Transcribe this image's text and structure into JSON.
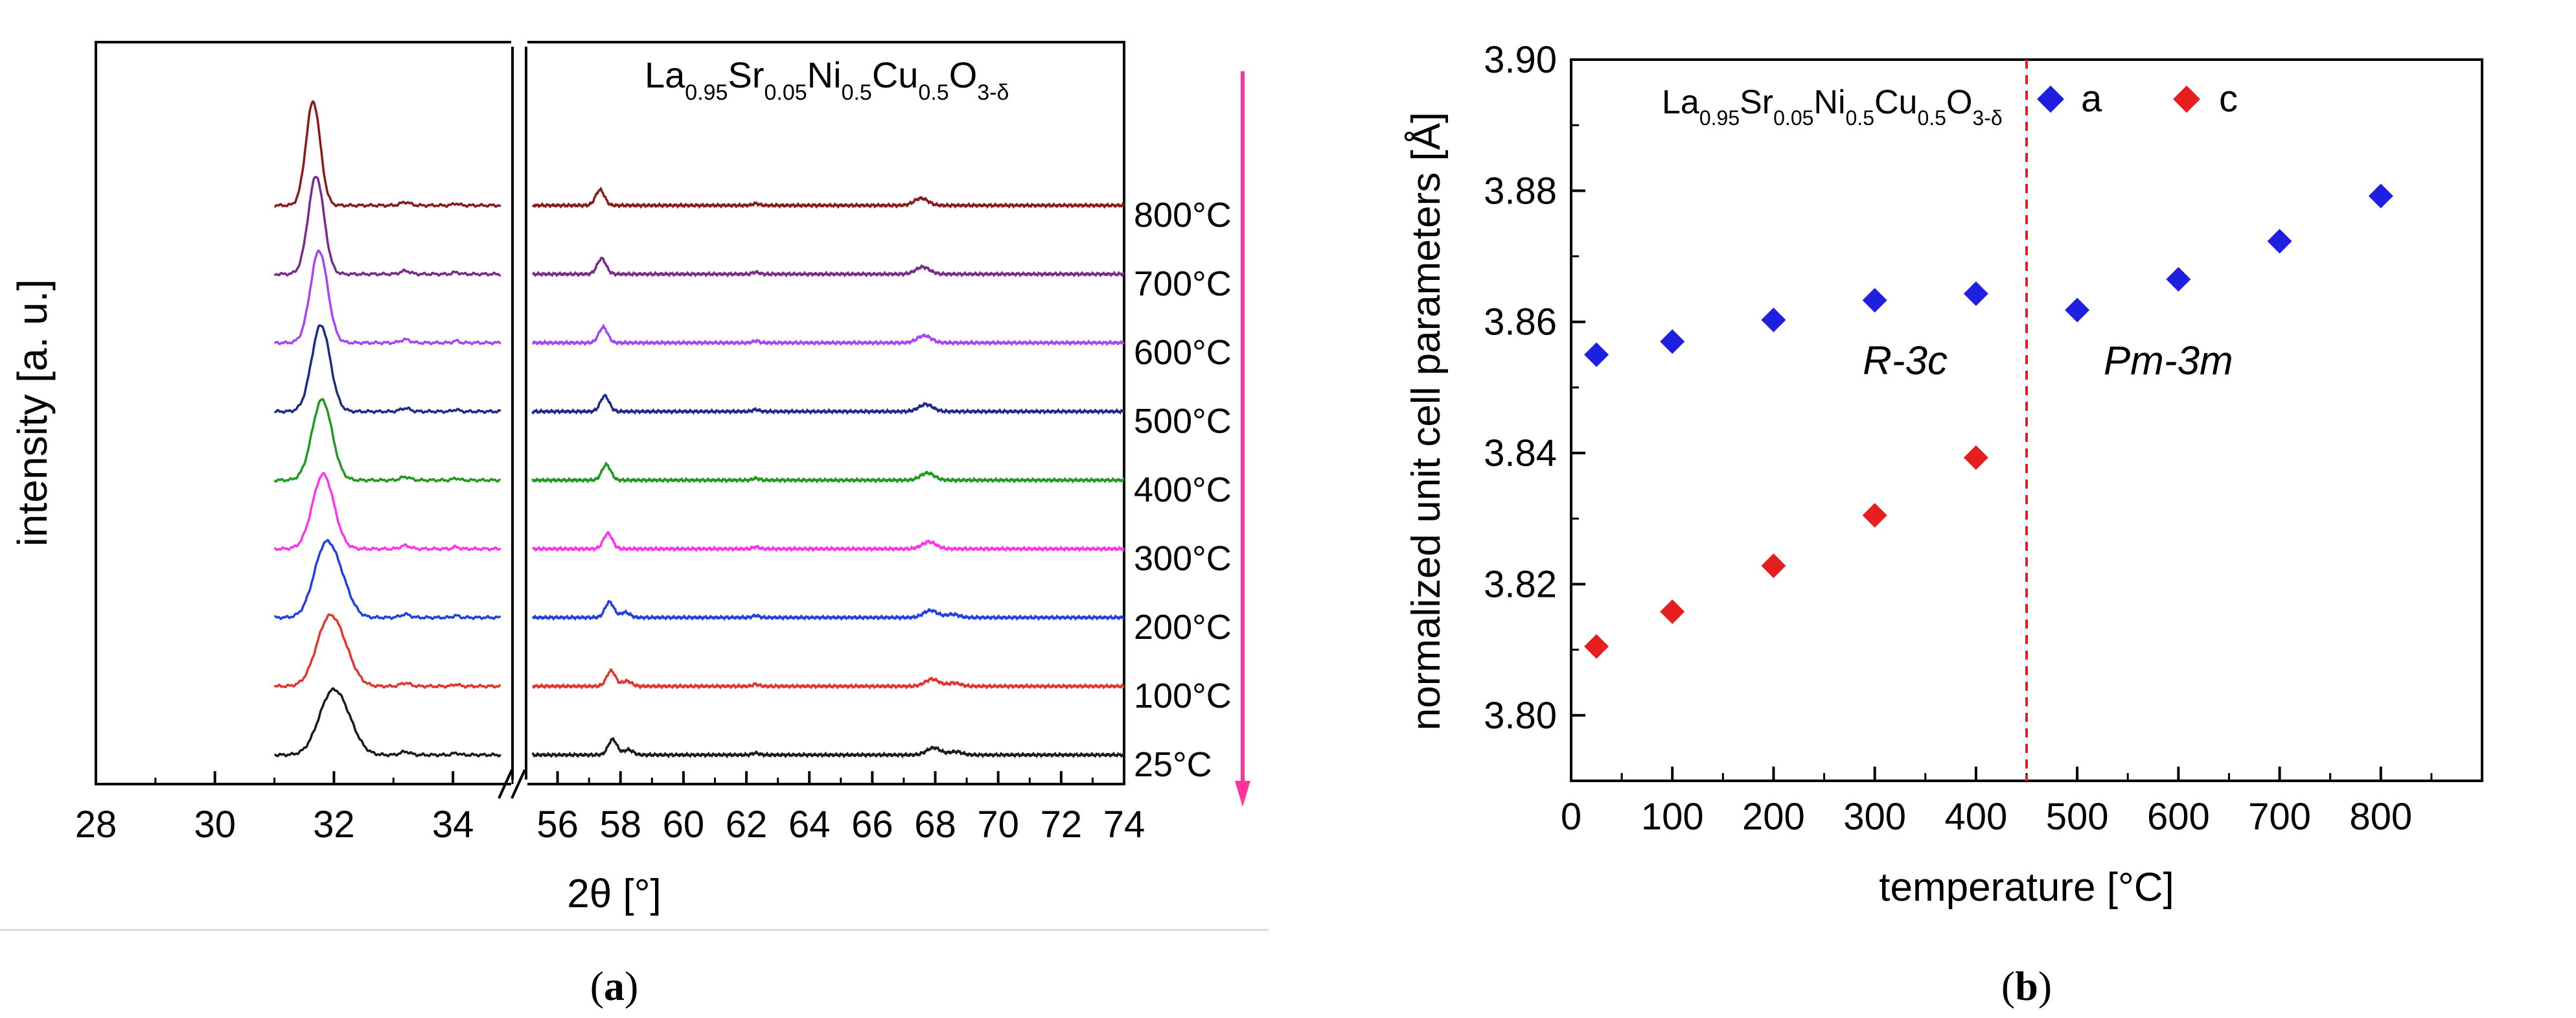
{
  "chart_data": [
    {
      "type": "line",
      "panel": "(a)",
      "panel_letter": "a",
      "title": "La0.95Sr0.05Ni0.5Cu0.5O3-δ",
      "formula": [
        {
          "t": "La",
          "sub": "0.95"
        },
        {
          "t": "Sr",
          "sub": "0.05"
        },
        {
          "t": "Ni",
          "sub": "0.5"
        },
        {
          "t": "Cu",
          "sub": "0.5"
        },
        {
          "t": "O",
          "sub": "3-δ"
        }
      ],
      "xlabel": "2θ [°]",
      "ylabel": "intensity [a. u.]",
      "x_segments": [
        {
          "range": [
            28,
            35
          ],
          "ticks": [
            "28",
            "30",
            "32",
            "34"
          ]
        },
        {
          "range": [
            55,
            74
          ],
          "ticks": [
            "56",
            "58",
            "60",
            "62",
            "64",
            "66",
            "68",
            "70",
            "72",
            "74"
          ]
        }
      ],
      "axis_break": "//",
      "peaks_2theta": [
        31.9,
        57.6,
        67.8
      ],
      "series": [
        {
          "name": "25°C",
          "color": "#1a1a1a",
          "peak1": 31.95,
          "peak2": 57.75,
          "peak3": 67.95
        },
        {
          "name": "100°C",
          "color": "#e3342f",
          "peak1": 31.9,
          "peak2": 57.7,
          "peak3": 67.9
        },
        {
          "name": "200°C",
          "color": "#2040e0",
          "peak1": 31.85,
          "peak2": 57.65,
          "peak3": 67.85
        },
        {
          "name": "300°C",
          "color": "#ff33ee",
          "peak1": 31.82,
          "peak2": 57.6,
          "peak3": 67.8
        },
        {
          "name": "400°C",
          "color": "#1e9a1e",
          "peak1": 31.8,
          "peak2": 57.55,
          "peak3": 67.75
        },
        {
          "name": "500°C",
          "color": "#1e2a8a",
          "peak1": 31.78,
          "peak2": 57.5,
          "peak3": 67.7
        },
        {
          "name": "600°C",
          "color": "#a545f5",
          "peak1": 31.75,
          "peak2": 57.45,
          "peak3": 67.65
        },
        {
          "name": "700°C",
          "color": "#7a2a8a",
          "peak1": 31.7,
          "peak2": 57.4,
          "peak3": 67.6
        },
        {
          "name": "800°C",
          "color": "#8b1a1a",
          "peak1": 31.65,
          "peak2": 57.35,
          "peak3": 67.55
        }
      ],
      "arrow_color": "#ff3399"
    },
    {
      "type": "scatter",
      "panel": "(b)",
      "panel_letter": "b",
      "title": "La0.95Sr0.05Ni0.5Cu0.5O3-δ",
      "formula": [
        {
          "t": "La",
          "sub": "0.95"
        },
        {
          "t": "Sr",
          "sub": "0.05"
        },
        {
          "t": "Ni",
          "sub": "0.5"
        },
        {
          "t": "Cu",
          "sub": "0.5"
        },
        {
          "t": "O",
          "sub": "3-δ"
        }
      ],
      "xlabel": "temperature [°C]",
      "ylabel": "normalized unit cell parameters [Å]",
      "xlim": [
        0,
        900
      ],
      "ylim": [
        3.79,
        3.9
      ],
      "x_ticks": [
        0,
        100,
        200,
        300,
        400,
        500,
        600,
        700,
        800
      ],
      "x_tick_labels": [
        "0",
        "100",
        "200",
        "300",
        "400",
        "500",
        "600",
        "700",
        "800"
      ],
      "y_ticks": [
        3.8,
        3.82,
        3.84,
        3.86,
        3.88,
        3.9
      ],
      "y_tick_labels": [
        "3.80",
        "3.82",
        "3.84",
        "3.86",
        "3.88",
        "3.90"
      ],
      "series": [
        {
          "name": "a",
          "color": "#1f1fe0",
          "x": [
            25,
            100,
            200,
            300,
            400,
            500,
            600,
            700,
            800
          ],
          "y": [
            3.855,
            3.857,
            3.8603,
            3.8633,
            3.8643,
            3.8618,
            3.8665,
            3.8723,
            3.8792
          ]
        },
        {
          "name": "c",
          "color": "#e61e1e",
          "x": [
            25,
            100,
            200,
            300,
            400
          ],
          "y": [
            3.8105,
            3.8158,
            3.8228,
            3.8305,
            3.8393
          ]
        }
      ],
      "phase_boundary_x": 450,
      "phase_boundary_color": "#e61e1e",
      "annotations": [
        {
          "text": "R-3c",
          "x": 330,
          "y": 3.852
        },
        {
          "text": "Pm-3m",
          "x": 590,
          "y": 3.852
        }
      ]
    }
  ]
}
